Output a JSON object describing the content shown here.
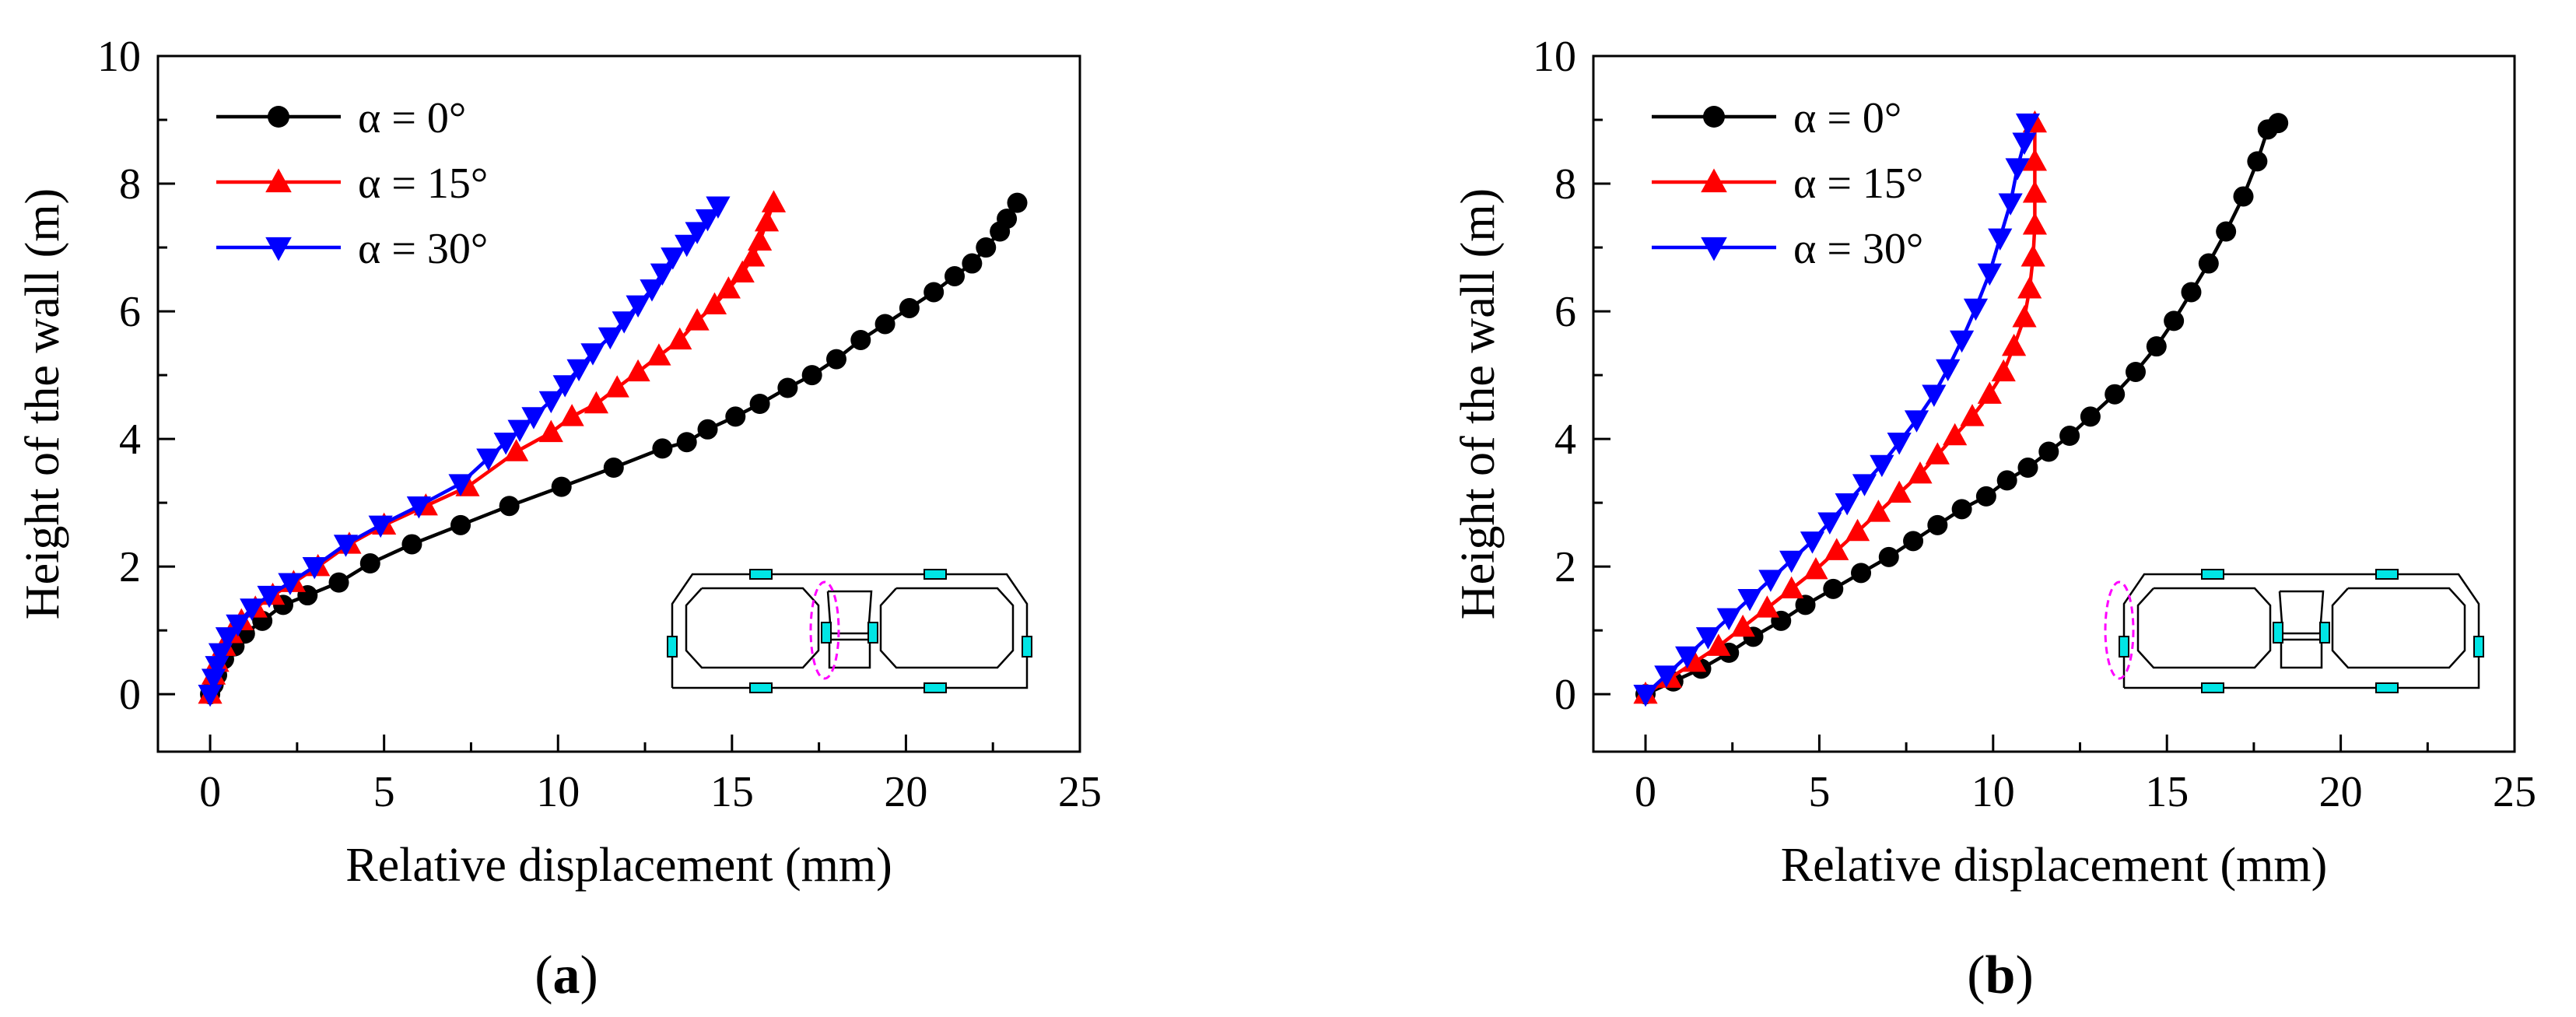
{
  "colors": {
    "black": "#000000",
    "red": "#ff0000",
    "blue": "#0000ff",
    "cyan": "#00e5e5",
    "magenta": "#ff00ff"
  },
  "markers": {
    "black": "circle",
    "red": "triangle-up",
    "blue": "triangle-down"
  },
  "panels": [
    {
      "label_open": "(",
      "label_letter": "a",
      "label_close": ")",
      "dashed_ellipse_position": "middle-wall"
    },
    {
      "label_open": "(",
      "label_letter": "b",
      "label_close": ")",
      "dashed_ellipse_position": "left-outer-wall"
    }
  ],
  "chart_data": [
    {
      "type": "line",
      "xlabel": "Relative displacement (mm)",
      "ylabel": "Height of the wall (m)",
      "xlim": [
        -1.5,
        25
      ],
      "ylim": [
        -0.9,
        10
      ],
      "xticks": [
        "0",
        "5",
        "10",
        "15",
        "20",
        "25"
      ],
      "yticks": [
        "0",
        "2",
        "4",
        "6",
        "8",
        "10"
      ],
      "legend_position": "top-left",
      "series": [
        {
          "name": "α = 0°",
          "color": "black",
          "marker": "circle",
          "x": [
            0,
            0.1,
            0.2,
            0.4,
            0.7,
            1.0,
            1.5,
            2.1,
            2.8,
            3.7,
            4.6,
            5.8,
            7.2,
            8.6,
            10.1,
            11.6,
            13.0,
            13.7,
            14.3,
            15.1,
            15.8,
            16.6,
            17.3,
            18.0,
            18.7,
            19.4,
            20.1,
            20.8,
            21.4,
            21.9,
            22.3,
            22.7,
            22.9,
            23.2
          ],
          "y": [
            0,
            0.15,
            0.3,
            0.55,
            0.75,
            0.95,
            1.15,
            1.4,
            1.55,
            1.75,
            2.05,
            2.35,
            2.65,
            2.95,
            3.25,
            3.55,
            3.85,
            3.95,
            4.15,
            4.35,
            4.55,
            4.8,
            5.0,
            5.25,
            5.55,
            5.8,
            6.05,
            6.3,
            6.55,
            6.75,
            7.0,
            7.25,
            7.45,
            7.7
          ]
        },
        {
          "name": "α = 15°",
          "color": "red",
          "marker": "triangle-up",
          "x": [
            0,
            0.1,
            0.2,
            0.4,
            0.6,
            0.9,
            1.3,
            1.8,
            2.4,
            3.1,
            4.0,
            5.0,
            6.2,
            7.4,
            8.8,
            9.8,
            10.4,
            11.1,
            11.7,
            12.3,
            12.9,
            13.5,
            14.0,
            14.5,
            14.9,
            15.3,
            15.6,
            15.8,
            16.0,
            16.2
          ],
          "y": [
            0,
            0.3,
            0.5,
            0.75,
            0.95,
            1.15,
            1.35,
            1.55,
            1.75,
            2.0,
            2.35,
            2.65,
            2.95,
            3.25,
            3.8,
            4.1,
            4.35,
            4.55,
            4.8,
            5.05,
            5.3,
            5.55,
            5.85,
            6.1,
            6.35,
            6.6,
            6.85,
            7.1,
            7.4,
            7.7
          ]
        },
        {
          "name": "α = 30°",
          "color": "blue",
          "marker": "triangle-down",
          "x": [
            0,
            0.1,
            0.2,
            0.3,
            0.5,
            0.8,
            1.2,
            1.7,
            2.3,
            3.0,
            3.9,
            4.9,
            6.0,
            7.2,
            8.0,
            8.5,
            8.9,
            9.3,
            9.8,
            10.2,
            10.6,
            11.0,
            11.5,
            11.9,
            12.3,
            12.7,
            13.0,
            13.3,
            13.7,
            14.0,
            14.3,
            14.6
          ],
          "y": [
            0,
            0.25,
            0.45,
            0.65,
            0.9,
            1.1,
            1.35,
            1.55,
            1.75,
            2.0,
            2.35,
            2.65,
            2.95,
            3.3,
            3.7,
            3.95,
            4.15,
            4.35,
            4.6,
            4.85,
            5.1,
            5.35,
            5.6,
            5.85,
            6.1,
            6.35,
            6.6,
            6.85,
            7.05,
            7.25,
            7.45,
            7.65
          ]
        }
      ]
    },
    {
      "type": "line",
      "xlabel": "Relative displacement (mm)",
      "ylabel": "Height of the wall (m)",
      "xlim": [
        -1.5,
        25
      ],
      "ylim": [
        -0.9,
        10
      ],
      "xticks": [
        "0",
        "5",
        "10",
        "15",
        "20",
        "25"
      ],
      "yticks": [
        "0",
        "2",
        "4",
        "6",
        "8",
        "10"
      ],
      "legend_position": "top-left",
      "series": [
        {
          "name": "α = 0°",
          "color": "black",
          "marker": "circle",
          "x": [
            0,
            0.8,
            1.6,
            2.4,
            3.1,
            3.9,
            4.6,
            5.4,
            6.2,
            7.0,
            7.7,
            8.4,
            9.1,
            9.8,
            10.4,
            11.0,
            11.6,
            12.2,
            12.8,
            13.5,
            14.1,
            14.7,
            15.2,
            15.7,
            16.2,
            16.7,
            17.2,
            17.6,
            17.9,
            18.2
          ],
          "y": [
            0,
            0.2,
            0.4,
            0.65,
            0.9,
            1.15,
            1.4,
            1.65,
            1.9,
            2.15,
            2.4,
            2.65,
            2.9,
            3.1,
            3.35,
            3.55,
            3.8,
            4.05,
            4.35,
            4.7,
            5.05,
            5.45,
            5.85,
            6.3,
            6.75,
            7.25,
            7.8,
            8.35,
            8.85,
            8.95
          ]
        },
        {
          "name": "α = 15°",
          "color": "red",
          "marker": "triangle-up",
          "x": [
            0,
            0.7,
            1.4,
            2.1,
            2.8,
            3.5,
            4.2,
            4.9,
            5.5,
            6.1,
            6.7,
            7.3,
            7.9,
            8.4,
            8.9,
            9.4,
            9.9,
            10.3,
            10.6,
            10.9,
            11.05,
            11.15,
            11.2,
            11.2,
            11.2,
            11.2
          ],
          "y": [
            0,
            0.25,
            0.5,
            0.75,
            1.05,
            1.35,
            1.65,
            1.95,
            2.25,
            2.55,
            2.85,
            3.15,
            3.45,
            3.75,
            4.05,
            4.35,
            4.7,
            5.05,
            5.45,
            5.9,
            6.35,
            6.85,
            7.35,
            7.85,
            8.35,
            8.95
          ]
        },
        {
          "name": "α = 30°",
          "color": "blue",
          "marker": "triangle-down",
          "x": [
            0,
            0.6,
            1.2,
            1.8,
            2.4,
            3.0,
            3.6,
            4.2,
            4.8,
            5.3,
            5.8,
            6.3,
            6.8,
            7.3,
            7.8,
            8.3,
            8.7,
            9.1,
            9.5,
            9.9,
            10.2,
            10.5,
            10.7,
            10.9,
            11.0
          ],
          "y": [
            0,
            0.3,
            0.6,
            0.9,
            1.2,
            1.5,
            1.8,
            2.1,
            2.4,
            2.7,
            3.0,
            3.3,
            3.6,
            3.95,
            4.3,
            4.7,
            5.1,
            5.55,
            6.05,
            6.6,
            7.15,
            7.7,
            8.25,
            8.65,
            8.95
          ]
        }
      ]
    }
  ]
}
